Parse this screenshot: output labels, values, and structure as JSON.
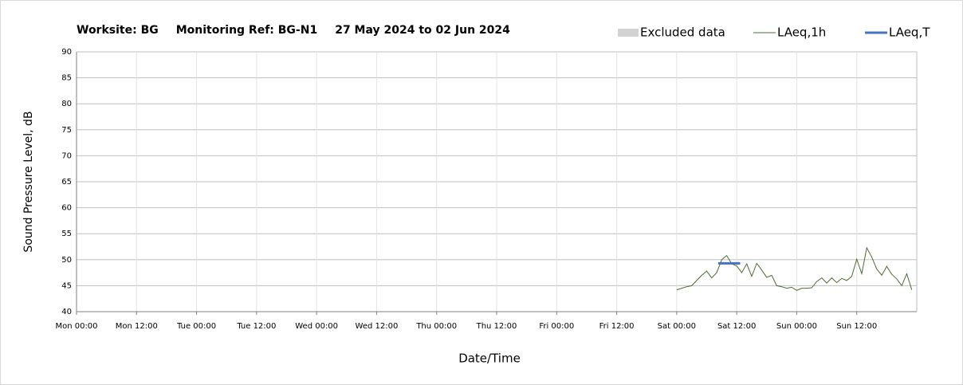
{
  "chart_data": {
    "type": "line",
    "title": [
      "Worksite: BG",
      "Monitoring Ref: BG-N1",
      "27 May 2024 to 02 Jun 2024"
    ],
    "x_label": "Date/Time",
    "y_label": "Sound Pressure Level, dB",
    "xlim": [
      0,
      168
    ],
    "xticks": [
      {
        "value": 0,
        "label": "Mon 00:00"
      },
      {
        "value": 12,
        "label": "Mon 12:00"
      },
      {
        "value": 24,
        "label": "Tue 00:00"
      },
      {
        "value": 36,
        "label": "Tue 12:00"
      },
      {
        "value": 48,
        "label": "Wed 00:00"
      },
      {
        "value": 60,
        "label": "Wed 12:00"
      },
      {
        "value": 72,
        "label": "Thu 00:00"
      },
      {
        "value": 84,
        "label": "Thu 12:00"
      },
      {
        "value": 96,
        "label": "Fri 00:00"
      },
      {
        "value": 108,
        "label": "Fri 12:00"
      },
      {
        "value": 120,
        "label": "Sat 00:00"
      },
      {
        "value": 132,
        "label": "Sat 12:00"
      },
      {
        "value": 144,
        "label": "Sun 00:00"
      },
      {
        "value": 156,
        "label": "Sun 12:00"
      }
    ],
    "ylim": [
      40,
      90
    ],
    "yticks": [
      40,
      45,
      50,
      55,
      60,
      65,
      70,
      75,
      80,
      85,
      90
    ],
    "grid": true,
    "legend": "top-right",
    "series": [
      {
        "name": "Excluded data",
        "color": "#d3d3d3",
        "x": [],
        "values": []
      },
      {
        "name": "LAeq,1h",
        "color": "#4f6b32",
        "x": [
          120,
          121,
          122,
          123,
          124,
          125,
          126,
          127,
          128,
          129,
          130,
          131,
          132,
          133,
          134,
          135,
          136,
          137,
          138,
          139,
          140,
          141,
          142,
          143,
          144,
          145,
          146,
          147,
          148,
          149,
          150,
          151,
          152,
          153,
          154,
          155,
          156,
          157,
          158,
          159,
          160,
          161,
          162,
          163,
          164,
          165,
          166,
          167
        ],
        "values": [
          44.2,
          44.5,
          44.8,
          45.0,
          46.0,
          47.0,
          47.8,
          46.5,
          47.5,
          50.0,
          50.8,
          49.2,
          48.8,
          47.5,
          49.2,
          46.8,
          49.3,
          48.0,
          46.6,
          47.0,
          45.0,
          44.8,
          44.5,
          44.7,
          44.1,
          44.5,
          44.5,
          44.6,
          45.8,
          46.5,
          45.5,
          46.5,
          45.6,
          46.4,
          46.0,
          46.8,
          50.1,
          47.3,
          52.3,
          50.5,
          48.2,
          47.0,
          48.7,
          47.2,
          46.3,
          45.0,
          47.3,
          44.2
        ]
      },
      {
        "name": "LAeq,T",
        "color": "#4472c4",
        "x": [
          128.3,
          132.7
        ],
        "values": [
          49.3,
          49.3
        ]
      }
    ]
  }
}
